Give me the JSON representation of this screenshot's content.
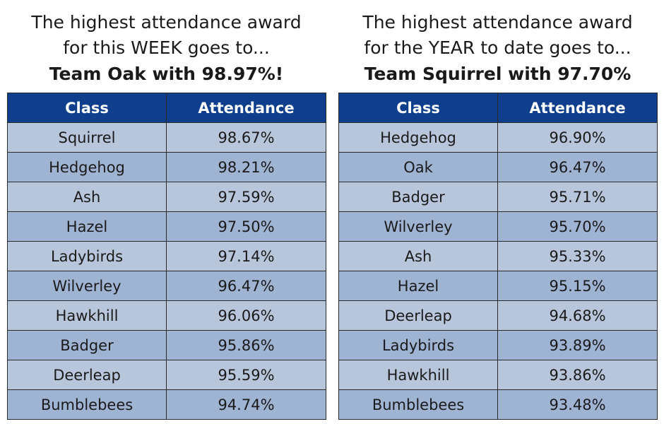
{
  "week": {
    "heading_line1": "The highest attendance award",
    "heading_line2": "for this WEEK goes to...",
    "winner": "Team Oak with 98.97%!",
    "columns": [
      "Class",
      "Attendance"
    ],
    "rows": [
      {
        "class": "Squirrel",
        "attendance": "98.67%"
      },
      {
        "class": "Hedgehog",
        "attendance": "98.21%"
      },
      {
        "class": "Ash",
        "attendance": "97.59%"
      },
      {
        "class": "Hazel",
        "attendance": "97.50%"
      },
      {
        "class": "Ladybirds",
        "attendance": "97.14%"
      },
      {
        "class": "Wilverley",
        "attendance": "96.47%"
      },
      {
        "class": "Hawkhill",
        "attendance": "96.06%"
      },
      {
        "class": "Badger",
        "attendance": "95.86%"
      },
      {
        "class": "Deerleap",
        "attendance": "95.59%"
      },
      {
        "class": "Bumblebees",
        "attendance": "94.74%"
      }
    ]
  },
  "year": {
    "heading_line1": "The highest attendance award",
    "heading_line2": "for the YEAR to date goes to...",
    "winner": "Team Squirrel with 97.70%",
    "columns": [
      "Class",
      "Attendance"
    ],
    "rows": [
      {
        "class": "Hedgehog",
        "attendance": "96.90%"
      },
      {
        "class": "Oak",
        "attendance": "96.47%"
      },
      {
        "class": "Badger",
        "attendance": "95.71%"
      },
      {
        "class": "Wilverley",
        "attendance": "95.70%"
      },
      {
        "class": "Ash",
        "attendance": "95.33%"
      },
      {
        "class": "Hazel",
        "attendance": "95.15%"
      },
      {
        "class": "Deerleap",
        "attendance": "94.68%"
      },
      {
        "class": "Ladybirds",
        "attendance": "93.89%"
      },
      {
        "class": "Hawkhill",
        "attendance": "93.86%"
      },
      {
        "class": "Bumblebees",
        "attendance": "93.48%"
      }
    ]
  },
  "colors": {
    "header_bg": "#0f3f8c",
    "row_light": "#b8c6dc",
    "row_dark": "#9fb3d3"
  }
}
